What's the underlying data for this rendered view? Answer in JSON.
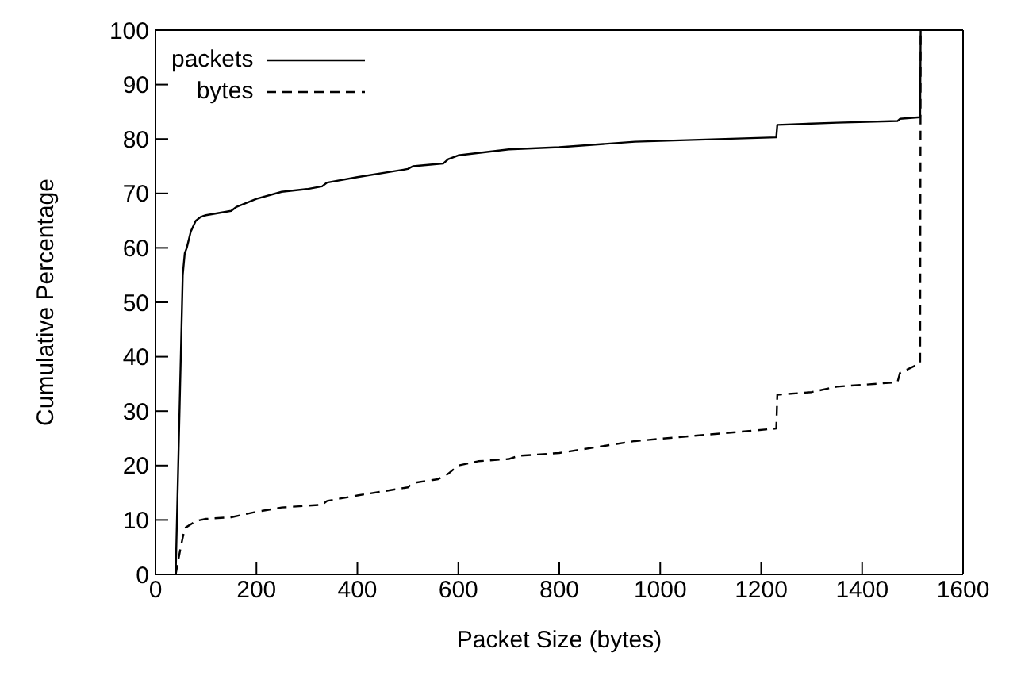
{
  "chart_data": {
    "type": "line",
    "xlabel": "Packet Size (bytes)",
    "ylabel": "Cumulative Percentage",
    "xlim": [
      0,
      1600
    ],
    "xticks": [
      0,
      200,
      400,
      600,
      800,
      1000,
      1200,
      1400,
      1600
    ],
    "ylim": [
      0,
      100
    ],
    "yticks": [
      0,
      10,
      20,
      30,
      40,
      50,
      60,
      70,
      80,
      90,
      100
    ],
    "legend": "top left",
    "marker": "none",
    "series": [
      {
        "name": "packets",
        "color": "#000000",
        "line_style": "solid",
        "x": [
          40,
          54,
          58,
          62,
          70,
          80,
          90,
          100,
          150,
          160,
          200,
          250,
          300,
          330,
          340,
          400,
          500,
          510,
          570,
          580,
          600,
          700,
          800,
          950,
          1230,
          1232,
          1350,
          1470,
          1475,
          1515,
          1516
        ],
        "values": [
          0,
          55,
          59,
          60,
          63,
          65,
          65.7,
          66,
          66.8,
          67.5,
          69,
          70.3,
          70.8,
          71.3,
          72,
          73,
          74.5,
          75,
          75.5,
          76.3,
          77,
          78.1,
          78.5,
          79.5,
          80.3,
          82.6,
          83,
          83.3,
          83.7,
          84,
          100
        ]
      },
      {
        "name": "bytes",
        "color": "#000000",
        "line_style": "dashed",
        "x": [
          40,
          50,
          58,
          80,
          100,
          150,
          200,
          250,
          330,
          340,
          400,
          500,
          510,
          560,
          580,
          600,
          640,
          700,
          720,
          800,
          950,
          1230,
          1232,
          1300,
          1350,
          1470,
          1475,
          1515,
          1516
        ],
        "values": [
          0,
          5,
          8.5,
          9.8,
          10.2,
          10.5,
          11.5,
          12.3,
          12.8,
          13.5,
          14.5,
          16,
          16.8,
          17.5,
          18.5,
          20,
          20.8,
          21.2,
          21.8,
          22.3,
          24.5,
          26.8,
          33,
          33.5,
          34.5,
          35.3,
          37,
          38.8,
          100
        ]
      }
    ]
  }
}
